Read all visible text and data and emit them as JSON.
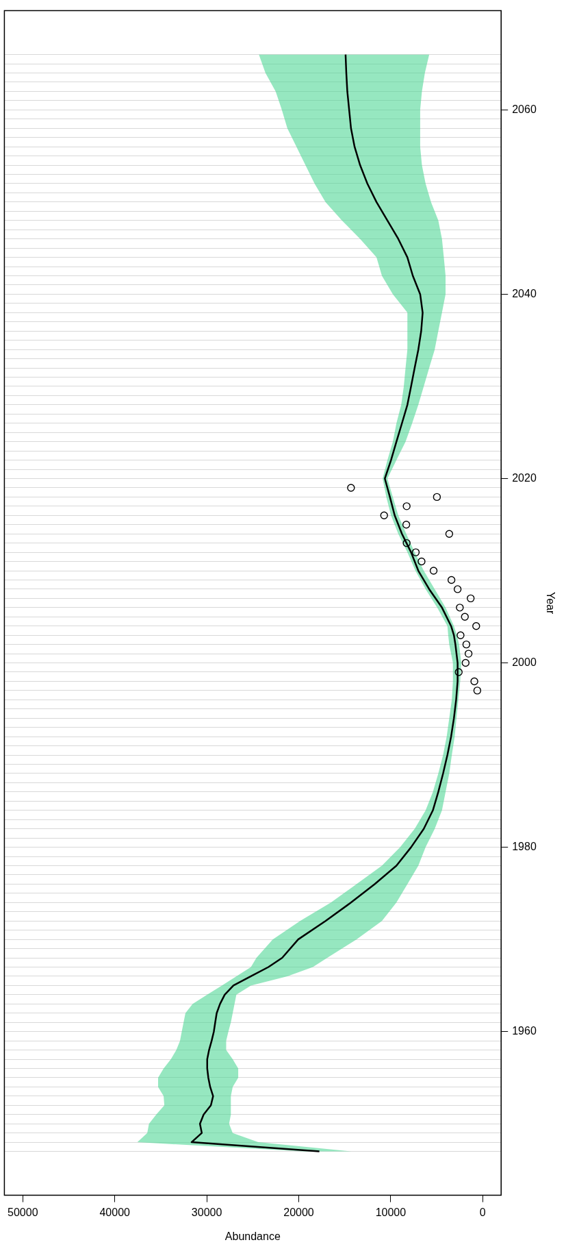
{
  "chart_data": {
    "type": "line",
    "orientation": "horizontal",
    "xlabel": "Abundance",
    "ylabel": "Year",
    "ylim": [
      1942.24,
      2070.76
    ],
    "xlim": [
      52000,
      -2000
    ],
    "grid": "y",
    "xticks": [
      0,
      10000,
      20000,
      30000,
      40000,
      50000
    ],
    "yticks": [
      {
        "value": 1947,
        "label": null
      },
      {
        "value": 1948,
        "label": null
      },
      {
        "value": 1949,
        "label": null
      },
      {
        "value": 1950,
        "label": null
      },
      {
        "value": 1951,
        "label": null
      },
      {
        "value": 1952,
        "label": null
      },
      {
        "value": 1953,
        "label": null
      },
      {
        "value": 1954,
        "label": null
      },
      {
        "value": 1955,
        "label": null
      },
      {
        "value": 1956,
        "label": null
      },
      {
        "value": 1957,
        "label": null
      },
      {
        "value": 1958,
        "label": null
      },
      {
        "value": 1959,
        "label": null
      },
      1960,
      {
        "value": 1961,
        "label": null
      },
      {
        "value": 1962,
        "label": null
      },
      {
        "value": 1963,
        "label": null
      },
      {
        "value": 1964,
        "label": null
      },
      {
        "value": 1965,
        "label": null
      },
      {
        "value": 1966,
        "label": null
      },
      {
        "value": 1967,
        "label": null
      },
      {
        "value": 1968,
        "label": null
      },
      {
        "value": 1969,
        "label": null
      },
      {
        "value": 1970,
        "label": null
      },
      {
        "value": 1971,
        "label": null
      },
      {
        "value": 1972,
        "label": null
      },
      {
        "value": 1973,
        "label": null
      },
      {
        "value": 1974,
        "label": null
      },
      {
        "value": 1975,
        "label": null
      },
      {
        "value": 1976,
        "label": null
      },
      {
        "value": 1977,
        "label": null
      },
      {
        "value": 1978,
        "label": null
      },
      {
        "value": 1979,
        "label": null
      },
      1980,
      {
        "value": 1981,
        "label": null
      },
      {
        "value": 1982,
        "label": null
      },
      {
        "value": 1983,
        "label": null
      },
      {
        "value": 1984,
        "label": null
      },
      {
        "value": 1985,
        "label": null
      },
      {
        "value": 1986,
        "label": null
      },
      {
        "value": 1987,
        "label": null
      },
      {
        "value": 1988,
        "label": null
      },
      {
        "value": 1989,
        "label": null
      },
      {
        "value": 1990,
        "label": null
      },
      {
        "value": 1991,
        "label": null
      },
      {
        "value": 1992,
        "label": null
      },
      {
        "value": 1993,
        "label": null
      },
      {
        "value": 1994,
        "label": null
      },
      {
        "value": 1995,
        "label": null
      },
      {
        "value": 1996,
        "label": null
      },
      {
        "value": 1997,
        "label": null
      },
      {
        "value": 1998,
        "label": null
      },
      {
        "value": 1999,
        "label": null
      },
      2000,
      {
        "value": 2001,
        "label": null
      },
      {
        "value": 2002,
        "label": null
      },
      {
        "value": 2003,
        "label": null
      },
      {
        "value": 2004,
        "label": null
      },
      {
        "value": 2005,
        "label": null
      },
      {
        "value": 2006,
        "label": null
      },
      {
        "value": 2007,
        "label": null
      },
      {
        "value": 2008,
        "label": null
      },
      {
        "value": 2009,
        "label": null
      },
      {
        "value": 2010,
        "label": null
      },
      {
        "value": 2011,
        "label": null
      },
      {
        "value": 2012,
        "label": null
      },
      {
        "value": 2013,
        "label": null
      },
      {
        "value": 2014,
        "label": null
      },
      {
        "value": 2015,
        "label": null
      },
      {
        "value": 2016,
        "label": null
      },
      {
        "value": 2017,
        "label": null
      },
      {
        "value": 2018,
        "label": null
      },
      {
        "value": 2019,
        "label": null
      },
      2020,
      {
        "value": 2021,
        "label": null
      },
      {
        "value": 2022,
        "label": null
      },
      {
        "value": 2023,
        "label": null
      },
      {
        "value": 2024,
        "label": null
      },
      {
        "value": 2025,
        "label": null
      },
      {
        "value": 2026,
        "label": null
      },
      {
        "value": 2027,
        "label": null
      },
      {
        "value": 2028,
        "label": null
      },
      {
        "value": 2029,
        "label": null
      },
      {
        "value": 2030,
        "label": null
      },
      {
        "value": 2031,
        "label": null
      },
      {
        "value": 2032,
        "label": null
      },
      {
        "value": 2033,
        "label": null
      },
      {
        "value": 2034,
        "label": null
      },
      {
        "value": 2035,
        "label": null
      },
      {
        "value": 2036,
        "label": null
      },
      {
        "value": 2037,
        "label": null
      },
      {
        "value": 2038,
        "label": null
      },
      {
        "value": 2039,
        "label": null
      },
      2040,
      {
        "value": 2041,
        "label": null
      },
      {
        "value": 2042,
        "label": null
      },
      {
        "value": 2043,
        "label": null
      },
      {
        "value": 2044,
        "label": null
      },
      {
        "value": 2045,
        "label": null
      },
      {
        "value": 2046,
        "label": null
      },
      {
        "value": 2047,
        "label": null
      },
      {
        "value": 2048,
        "label": null
      },
      {
        "value": 2049,
        "label": null
      },
      {
        "value": 2050,
        "label": null
      },
      {
        "value": 2051,
        "label": null
      },
      {
        "value": 2052,
        "label": null
      },
      {
        "value": 2053,
        "label": null
      },
      {
        "value": 2054,
        "label": null
      },
      {
        "value": 2055,
        "label": null
      },
      {
        "value": 2056,
        "label": null
      },
      {
        "value": 2057,
        "label": null
      },
      {
        "value": 2058,
        "label": null
      },
      {
        "value": 2059,
        "label": null
      },
      2060,
      {
        "value": 2061,
        "label": null
      },
      {
        "value": 2062,
        "label": null
      },
      {
        "value": 2063,
        "label": null
      },
      {
        "value": 2064,
        "label": null
      },
      {
        "value": 2065,
        "label": null
      },
      {
        "value": 2066,
        "label": null
      }
    ],
    "series": [
      {
        "type": "line",
        "color": "#000000",
        "marker": "none",
        "x": [
          1947,
          1948,
          1949,
          1950,
          1951,
          1952,
          1953,
          1954,
          1955,
          1956,
          1957,
          1958,
          1959,
          1960,
          1961,
          1962,
          1963,
          1964,
          1965,
          1966,
          1967,
          1968,
          1970,
          1972,
          1974,
          1976,
          1978,
          1980,
          1982,
          1984,
          1986,
          1988,
          1990,
          1992,
          1994,
          1996,
          1998,
          2000,
          2002,
          2003,
          2004,
          2006,
          2008,
          2010,
          2012,
          2014,
          2016,
          2018,
          2020,
          2022,
          2024,
          2026,
          2028,
          2030,
          2032,
          2034,
          2036,
          2038,
          2040,
          2042,
          2044,
          2046,
          2048,
          2050,
          2052,
          2054,
          2056,
          2058,
          2060,
          2062,
          2064,
          2066
        ],
        "values": [
          17760,
          31650,
          30540,
          30740,
          30340,
          29550,
          29310,
          29630,
          29830,
          29950,
          29950,
          29750,
          29470,
          29230,
          29080,
          28920,
          28560,
          28050,
          27100,
          25200,
          23300,
          21800,
          20060,
          17090,
          14320,
          11750,
          9380,
          7790,
          6410,
          5420,
          4830,
          4310,
          3840,
          3440,
          3130,
          2890,
          2730,
          2730,
          2970,
          3130,
          3440,
          4430,
          5820,
          7000,
          7790,
          8780,
          9570,
          10090,
          10640,
          9970,
          9380,
          8780,
          8190,
          7790,
          7400,
          7000,
          6690,
          6530,
          6800,
          7600,
          8190,
          9180,
          10360,
          11550,
          12540,
          13330,
          13930,
          14320,
          14520,
          14720,
          14830,
          14910
        ],
        "upper": [
          19500,
          37540,
          36470,
          36280,
          35490,
          34610,
          34690,
          35290,
          35290,
          34690,
          33900,
          33310,
          32910,
          32720,
          32520,
          32320,
          31530,
          29950,
          28360,
          26780,
          25200,
          24600,
          22830,
          19860,
          16500,
          13730,
          10960,
          8980,
          7400,
          6210,
          5420,
          4830,
          4310,
          3920,
          3640,
          3360,
          3240,
          3240,
          3640,
          3750,
          3840,
          4950,
          6210,
          7320,
          8190,
          9180,
          9970,
          10480,
          10880,
          10360,
          9770,
          9380,
          8860,
          8580,
          8390,
          8190,
          8190,
          8190,
          9770,
          10960,
          11550,
          13330,
          15310,
          17090,
          18280,
          19270,
          20250,
          21240,
          21840,
          22510,
          23620,
          24330
        ],
        "lower": [
          14300,
          24410,
          27180,
          27570,
          27380,
          27380,
          27380,
          27180,
          26580,
          26580,
          27180,
          27890,
          27890,
          27650,
          27380,
          27180,
          26980,
          26780,
          25200,
          21240,
          18470,
          16900,
          13730,
          10960,
          9380,
          8190,
          7000,
          6210,
          5220,
          4430,
          4040,
          3640,
          3360,
          3050,
          2850,
          2650,
          2450,
          2330,
          2570,
          2800,
          3130,
          4040,
          5220,
          6410,
          7400,
          8310,
          9180,
          9770,
          10360,
          9380,
          8390,
          7670,
          7000,
          6410,
          5820,
          5220,
          4830,
          4430,
          4040,
          4040,
          4230,
          4430,
          4830,
          5620,
          6210,
          6610,
          6800,
          6800,
          6800,
          6610,
          6290,
          5820
        ]
      },
      {
        "type": "scatter",
        "color": "#000000",
        "marker": "circle",
        "x": [
          1997,
          1998,
          1999,
          2000,
          2001,
          2002,
          2003,
          2004,
          2005,
          2006,
          2007,
          2008,
          2009,
          2010,
          2011,
          2012,
          2013,
          2014,
          2015,
          2016,
          2017,
          2018,
          2019
        ],
        "values": [
          590,
          910,
          2610,
          1860,
          1540,
          1780,
          2410,
          710,
          1940,
          2490,
          1310,
          2730,
          3400,
          5340,
          6650,
          7280,
          8270,
          3640,
          8310,
          10720,
          8270,
          4980,
          14320
        ]
      }
    ]
  }
}
